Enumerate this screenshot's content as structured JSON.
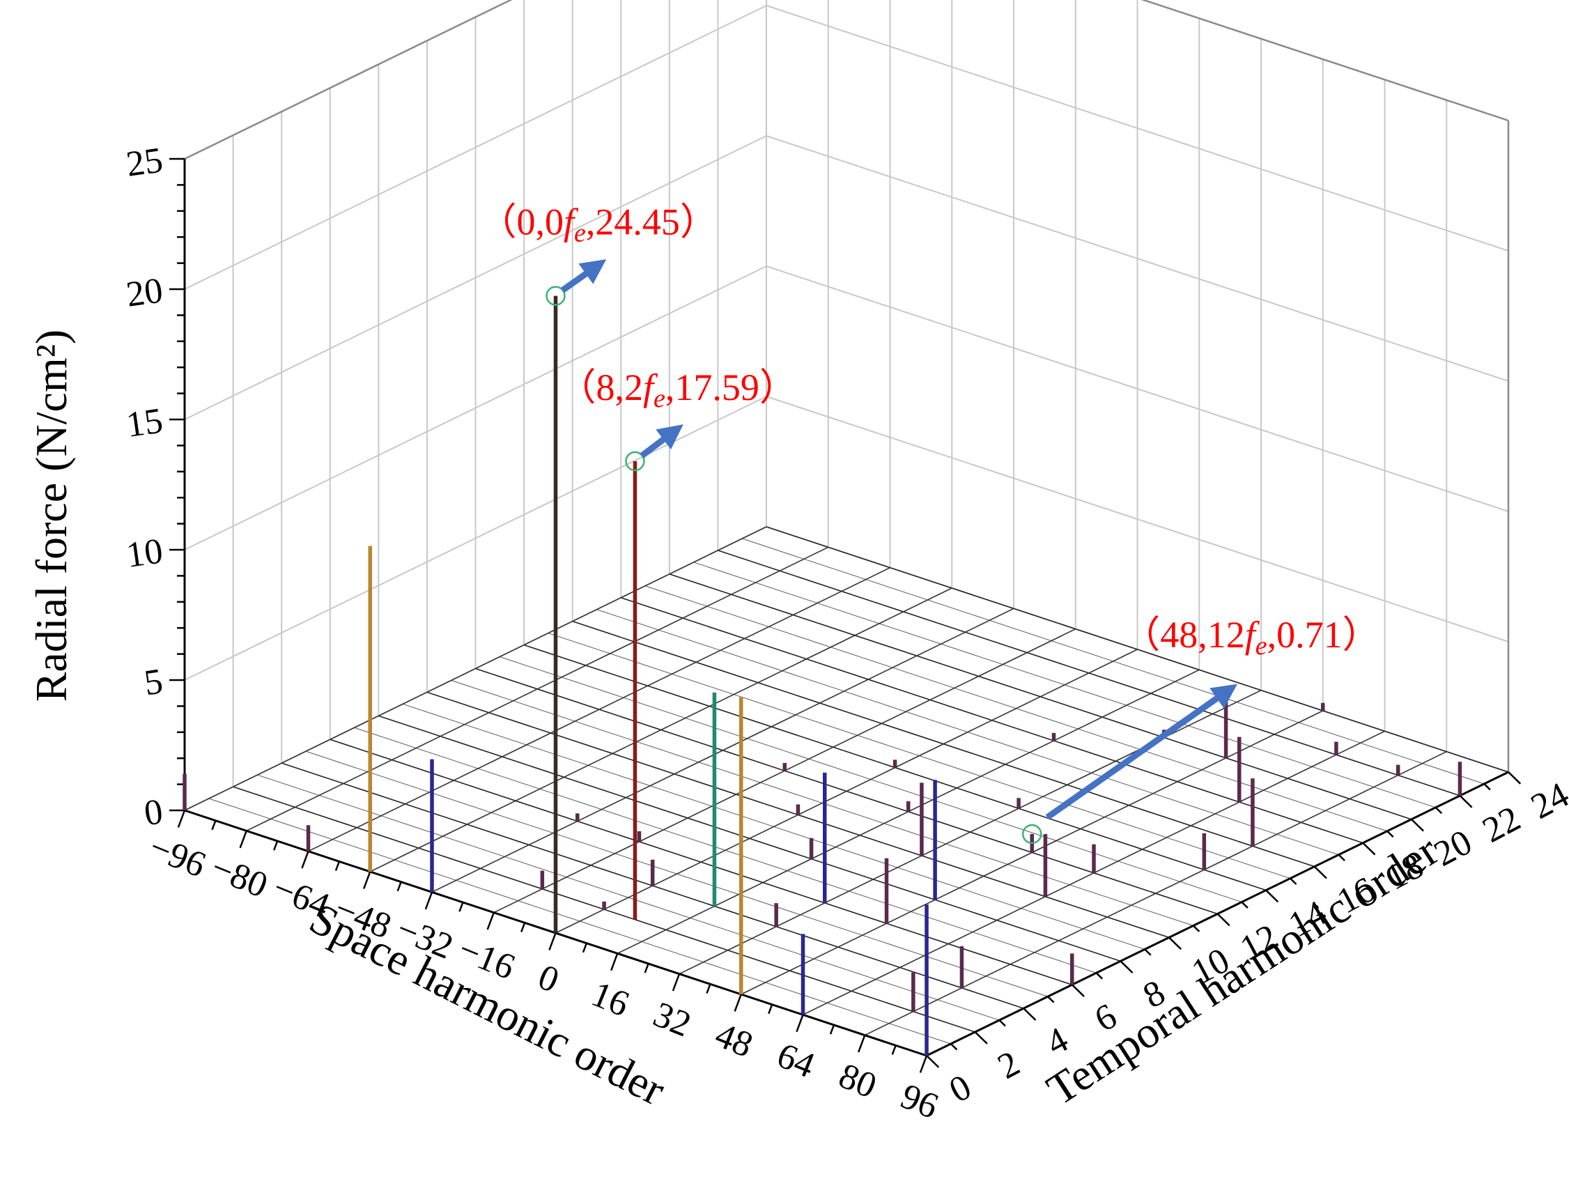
{
  "chart_data": {
    "type": "3d-bar",
    "zlabel": "Radial force (N/cm²)",
    "xlabel": "Space harmonic order",
    "ylabel": "Temporal  harmonic order",
    "z_ticks": [
      "0",
      "5",
      "10",
      "15",
      "20",
      "25"
    ],
    "x_ticks": [
      "−96",
      "−80",
      "−64",
      "−48",
      "−32",
      "−16",
      "0",
      "16",
      "32",
      "48",
      "64",
      "80",
      "96"
    ],
    "y_ticks": [
      "0",
      "2",
      "4",
      "6",
      "8",
      "10",
      "12",
      "14",
      "16",
      "18",
      "20",
      "22",
      "24"
    ],
    "zlim": [
      0,
      25
    ],
    "xlim": [
      -96,
      96
    ],
    "ylim": [
      0,
      24
    ],
    "grid": true,
    "annotations": [
      {
        "pre": "（0,0",
        "f": "f",
        "sub": "e",
        "post": ",24.45）",
        "x": 0,
        "y": 0,
        "z": 24.45
      },
      {
        "pre": "（8,2",
        "f": "f",
        "sub": "e",
        "post": ",17.59）",
        "x": 8,
        "y": 2,
        "z": 17.59
      },
      {
        "pre": "（48,12",
        "f": "f",
        "sub": "e",
        "post": ",0.71）",
        "x": 48,
        "y": 12,
        "z": 0.71
      }
    ],
    "bars": [
      {
        "x": 0,
        "y": 0,
        "z": 24.45,
        "color": "#3a2a24"
      },
      {
        "x": 8,
        "y": 2,
        "z": 17.59,
        "color": "#8b1a1a"
      },
      {
        "x": -48,
        "y": 0,
        "z": 12.5,
        "color": "#b8862e"
      },
      {
        "x": 48,
        "y": 0,
        "z": 11.4,
        "color": "#b8862e"
      },
      {
        "x": 16,
        "y": 4,
        "z": 8.2,
        "color": "#1f8a70"
      },
      {
        "x": -32,
        "y": 0,
        "z": 5.1,
        "color": "#28288f"
      },
      {
        "x": 96,
        "y": 0,
        "z": 5.8,
        "color": "#28288f"
      },
      {
        "x": 32,
        "y": 6,
        "z": 5.0,
        "color": "#28288f"
      },
      {
        "x": 64,
        "y": 0,
        "z": 3.1,
        "color": "#28288f"
      },
      {
        "x": 48,
        "y": 8,
        "z": 4.6,
        "color": "#28288f"
      },
      {
        "x": -96,
        "y": 0,
        "z": 1.4,
        "color": "#5a2a4e"
      },
      {
        "x": -64,
        "y": 0,
        "z": 1.0,
        "color": "#5a2a4e"
      },
      {
        "x": -16,
        "y": 2,
        "z": 0.7,
        "color": "#5a2a4e"
      },
      {
        "x": 0,
        "y": 4,
        "z": 1.0,
        "color": "#5a2a4e"
      },
      {
        "x": 16,
        "y": 8,
        "z": 0.8,
        "color": "#5a2a4e"
      },
      {
        "x": 32,
        "y": 10,
        "z": 2.8,
        "color": "#5a2a4e"
      },
      {
        "x": 80,
        "y": 2,
        "z": 1.5,
        "color": "#5a2a4e"
      },
      {
        "x": 80,
        "y": 4,
        "z": 1.6,
        "color": "#5a2a4e"
      },
      {
        "x": 96,
        "y": 6,
        "z": 1.2,
        "color": "#5a2a4e"
      },
      {
        "x": 48,
        "y": 12,
        "z": 0.71,
        "color": "#5a2a4e"
      },
      {
        "x": 64,
        "y": 12,
        "z": 1.1,
        "color": "#5a2a4e"
      },
      {
        "x": 80,
        "y": 14,
        "z": 1.4,
        "color": "#5a2a4e"
      },
      {
        "x": 64,
        "y": 18,
        "z": 2.5,
        "color": "#5a2a4e"
      },
      {
        "x": 48,
        "y": 20,
        "z": 2.6,
        "color": "#5a2a4e"
      },
      {
        "x": 96,
        "y": 22,
        "z": 1.3,
        "color": "#5a2a4e"
      },
      {
        "x": -16,
        "y": 6,
        "z": 0.4,
        "color": "#5a2a4e"
      },
      {
        "x": 0,
        "y": 10,
        "z": 0.4,
        "color": "#5a2a4e"
      },
      {
        "x": 16,
        "y": 12,
        "z": 0.4,
        "color": "#5a2a4e"
      },
      {
        "x": 32,
        "y": 14,
        "z": 0.4,
        "color": "#5a2a4e"
      },
      {
        "x": 64,
        "y": 22,
        "z": 0.5,
        "color": "#5a2a4e"
      },
      {
        "x": 80,
        "y": 22,
        "z": 0.4,
        "color": "#5a2a4e"
      },
      {
        "x": -32,
        "y": 6,
        "z": 0.3,
        "color": "#5a2a4e"
      },
      {
        "x": 16,
        "y": 18,
        "z": 0.3,
        "color": "#5a2a4e"
      },
      {
        "x": 32,
        "y": 20,
        "z": 0.3,
        "color": "#5a2a4e"
      },
      {
        "x": 0,
        "y": 14,
        "z": 0.3,
        "color": "#5a2a4e"
      },
      {
        "x": -16,
        "y": 12,
        "z": 0.3,
        "color": "#5a2a4e"
      },
      {
        "x": 48,
        "y": 24,
        "z": 0.3,
        "color": "#5a2a4e"
      },
      {
        "x": 32,
        "y": 4,
        "z": 0.9,
        "color": "#5a2a4e"
      },
      {
        "x": 48,
        "y": 6,
        "z": 2.5,
        "color": "#5a2a4e"
      },
      {
        "x": 64,
        "y": 10,
        "z": 2.4,
        "color": "#5a2a4e"
      },
      {
        "x": 80,
        "y": 16,
        "z": 2.6,
        "color": "#5a2a4e"
      },
      {
        "x": 0,
        "y": 2,
        "z": 0.3,
        "color": "#5a2a4e"
      }
    ],
    "colors": {
      "annotation_text": "#ff0000",
      "arrow": "#4472c4",
      "marker_circle": "#3cb371",
      "grid": "#c8c8c8",
      "floor_grid": "#2a2a2a"
    }
  }
}
